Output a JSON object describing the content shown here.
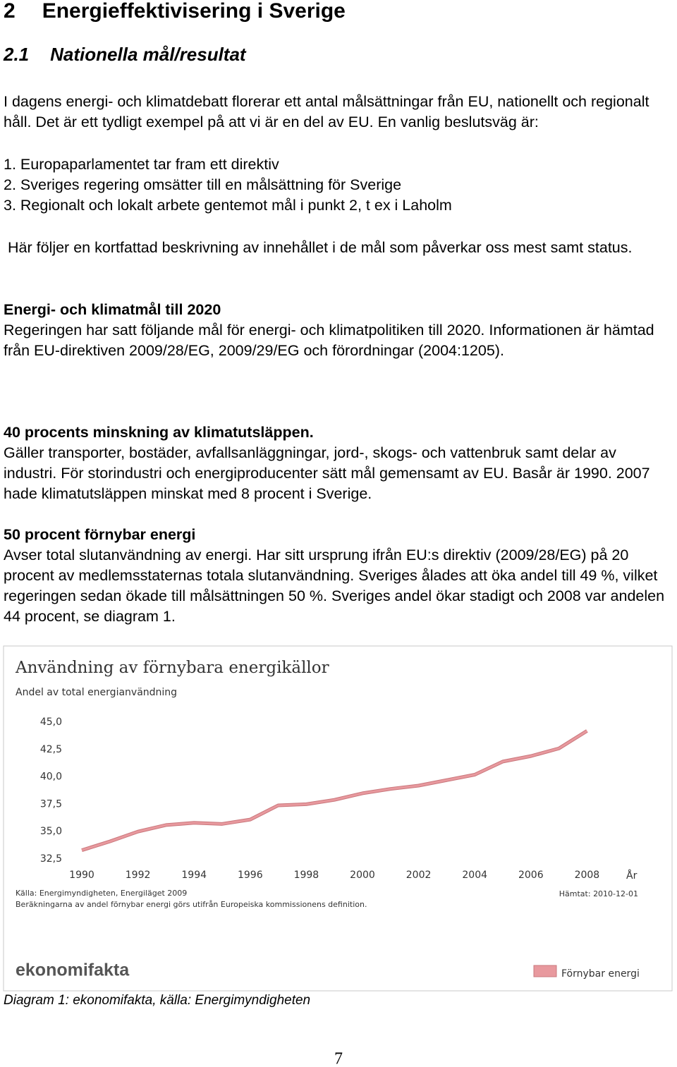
{
  "section": {
    "number": "2",
    "title": "Energieffektivisering i Sverige"
  },
  "subsection": {
    "number": "2.1",
    "title": "Nationella mål/resultat"
  },
  "intro": "I dagens energi- och klimatdebatt florerar ett antal målsättningar från EU, nationellt och regionalt håll. Det är ett tydligt exempel på att vi är en del av EU. En vanlig beslutsväg är:",
  "steps": [
    "1. Europaparlamentet tar fram ett direktiv",
    "2. Sveriges regering omsätter till en målsättning för Sverige",
    "3. Regionalt och lokalt arbete gentemot mål i punkt 2, t ex i Laholm"
  ],
  "summary": "Här följer en kortfattad beskrivning av innehållet i de mål som påverkar oss mest samt status.",
  "blocks": [
    {
      "heading": "Energi- och klimatmål till 2020",
      "text": "Regeringen har satt följande mål för energi- och klimatpolitiken till 2020. Informationen är hämtad från EU-direktiven 2009/28/EG, 2009/29/EG och förordningar (2004:1205)."
    },
    {
      "heading": "40 procents minskning av klimatutsläppen.",
      "text": "Gäller transporter, bostäder, avfallsanläggningar, jord-, skogs- och vattenbruk samt delar av industri. För storindustri och energiproducenter sätt mål gemensamt av EU. Basår är 1990. 2007 hade klimatutsläppen minskat med 8 procent i Sverige."
    },
    {
      "heading": "50 procent förnybar energi",
      "text": "Avser total slutanvändning av energi. Har sitt ursprung ifrån EU:s direktiv (2009/28/EG) på 20 procent av medlemsstaternas totala slutanvändning. Sveriges ålades att öka andel till 49 %, vilket regeringen sedan ökade till målsättningen 50 %. Sveriges andel ökar stadigt och 2008 var andelen 44 procent, se diagram 1."
    }
  ],
  "chart_data": {
    "type": "line",
    "title": "Användning av förnybara energikällor",
    "subtitle": "Andel av total energianvändning",
    "x_label": "År",
    "x": [
      1990,
      1991,
      1992,
      1993,
      1994,
      1995,
      1996,
      1997,
      1998,
      1999,
      2000,
      2001,
      2002,
      2003,
      2004,
      2005,
      2006,
      2007,
      2008
    ],
    "series": [
      {
        "name": "Förnybar energi",
        "color": "#e8999e",
        "values": [
          33.3,
          34.1,
          35.0,
          35.6,
          35.8,
          35.7,
          36.1,
          37.4,
          37.5,
          37.9,
          38.5,
          38.9,
          39.2,
          39.7,
          40.2,
          41.4,
          41.9,
          42.6,
          44.2
        ]
      }
    ],
    "xlim": [
      1990,
      2010
    ],
    "xticks": [
      1990,
      1992,
      1994,
      1996,
      1998,
      2000,
      2002,
      2004,
      2006,
      2008
    ],
    "ylim": [
      32.5,
      45
    ],
    "yticks": [
      {
        "value": 32.5,
        "label": "32,5"
      },
      {
        "value": 35,
        "label": "35,0"
      },
      {
        "value": 37.5,
        "label": "37,5"
      },
      {
        "value": 40,
        "label": "40,0"
      },
      {
        "value": 42.5,
        "label": "42,5"
      },
      {
        "value": 45,
        "label": "45,0"
      }
    ],
    "grid": false,
    "legend": "bottom-right",
    "source": "Källa: Energimyndigheten, Energiläget 2009",
    "note": "Beräkningarna av andel förnybar energi görs utifrån Europeiska kommissionens definition.",
    "retrieved": "Hämtat: 2010-12-01",
    "logo": "ekonomifakta"
  },
  "caption": "Diagram 1: ekonomifakta, källa: Energimyndigheten",
  "page_number": "7"
}
